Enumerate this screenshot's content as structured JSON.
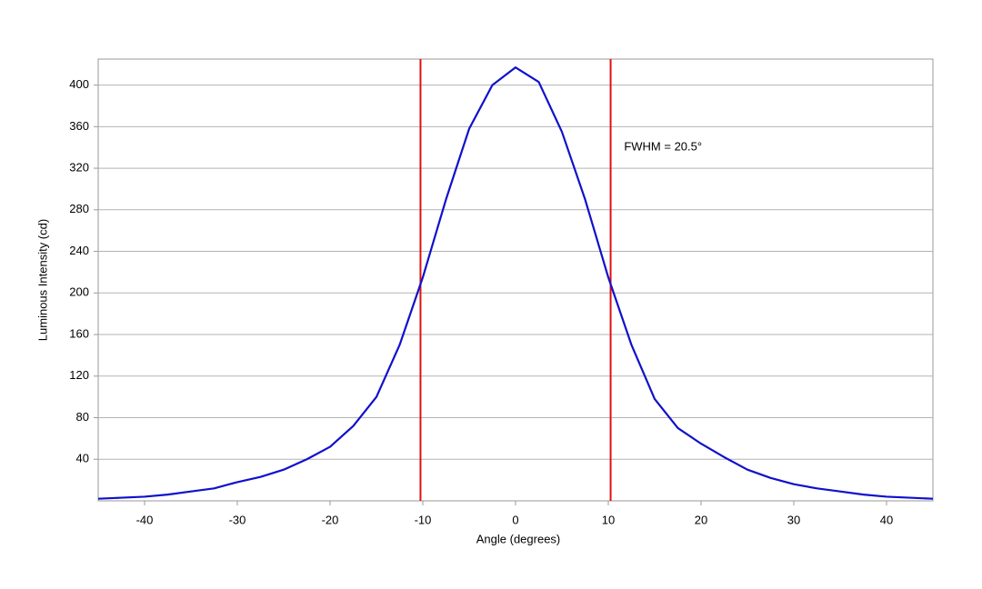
{
  "chart_data": {
    "type": "line",
    "x_label": "Angle (degrees)",
    "y_label": "Luminous Intensity (cd)",
    "x": [
      -45,
      -42.5,
      -40,
      -37.5,
      -35,
      -32.5,
      -30,
      -27.5,
      -25,
      -22.5,
      -20,
      -17.5,
      -15,
      -12.5,
      -10,
      -7.5,
      -5,
      -2.5,
      0,
      2.5,
      5,
      7.5,
      10,
      12.5,
      15,
      17.5,
      20,
      22.5,
      25,
      27.5,
      30,
      32.5,
      35,
      37.5,
      40,
      42.5,
      45
    ],
    "series": [
      {
        "color": "#1010cc",
        "values": [
          2,
          3,
          4,
          6,
          9,
          12,
          18,
          23,
          30,
          40,
          52,
          72,
          100,
          150,
          215,
          290,
          358,
          400,
          417,
          403,
          355,
          290,
          215,
          150,
          98,
          70,
          55,
          42,
          30,
          22,
          16,
          12,
          9,
          6,
          4,
          3,
          2
        ]
      }
    ],
    "xlim": [
      -45,
      45
    ],
    "ylim": [
      0,
      425
    ],
    "xticks": [
      -40,
      -30,
      -20,
      -10,
      0,
      10,
      20,
      30,
      40
    ],
    "yticks": [
      40,
      80,
      120,
      160,
      200,
      240,
      280,
      320,
      360,
      400
    ],
    "grid": true,
    "vlines": {
      "color": "#dd1111",
      "x": [
        -10.25,
        10.25
      ]
    },
    "annotation": {
      "text": "FWHM = 20.5°",
      "x": 11.7,
      "y": 340
    }
  }
}
